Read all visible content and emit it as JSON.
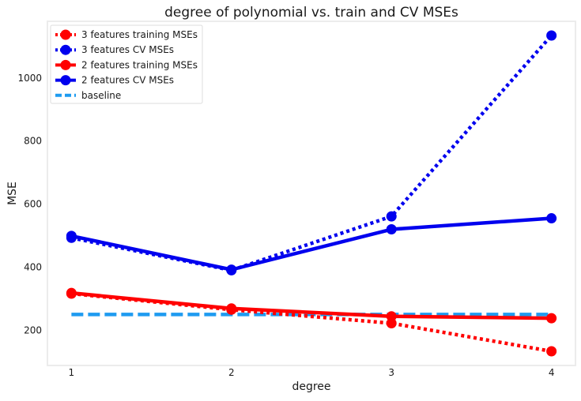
{
  "chart_data": {
    "type": "line",
    "title": "degree of polynomial vs. train and CV MSEs",
    "xlabel": "degree",
    "ylabel": "MSE",
    "x": [
      1,
      2,
      3,
      4
    ],
    "xlim": [
      0.85,
      4.15
    ],
    "ylim": [
      88,
      1180
    ],
    "xticks": [
      1,
      2,
      3,
      4
    ],
    "yticks": [
      200,
      400,
      600,
      800,
      1000
    ],
    "grid": false,
    "legend_position": "top-left",
    "series": [
      {
        "name": "3 features training MSEs",
        "values": [
          316,
          265,
          222,
          133
        ],
        "color": "#ff0000",
        "line_style": "dotted",
        "marker": "circle"
      },
      {
        "name": "3 features CV MSEs",
        "values": [
          493,
          390,
          561,
          1135
        ],
        "color": "#0000ee",
        "line_style": "dotted",
        "marker": "circle"
      },
      {
        "name": "2 features training MSEs",
        "values": [
          318,
          269,
          244,
          238
        ],
        "color": "#ff0000",
        "line_style": "solid",
        "marker": "circle"
      },
      {
        "name": "2 features CV MSEs",
        "values": [
          499,
          392,
          520,
          555
        ],
        "color": "#0000ee",
        "line_style": "solid",
        "marker": "circle"
      },
      {
        "name": "baseline",
        "values": [
          250,
          250,
          250,
          250
        ],
        "color": "#1e9bf0",
        "line_style": "dashed",
        "marker": "none"
      }
    ]
  }
}
